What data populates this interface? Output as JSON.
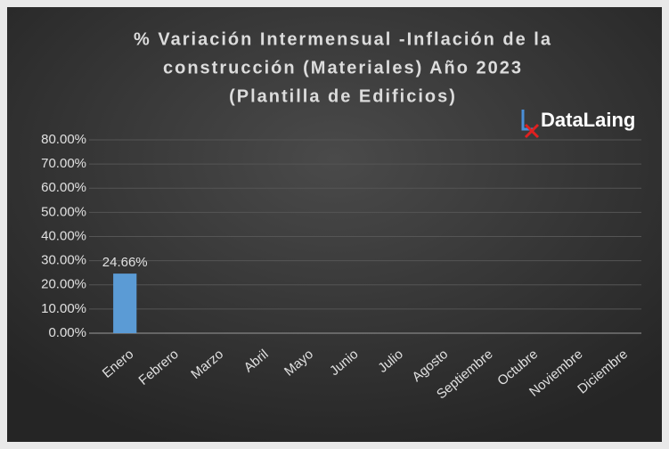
{
  "chart_data": {
    "type": "bar",
    "title": [
      "% Variación Intermensual -Inflación de la",
      "construcción (Materiales) Año 2023",
      "(Plantilla de Edificios)"
    ],
    "logo": "DataLaing",
    "categories": [
      "Enero",
      "Febrero",
      "Marzo",
      "Abril",
      "Mayo",
      "Junio",
      "Julio",
      "Agosto",
      "Septiembre",
      "Octubre",
      "Noviembre",
      "Diciembre"
    ],
    "values": [
      24.66,
      null,
      null,
      null,
      null,
      null,
      null,
      null,
      null,
      null,
      null,
      null
    ],
    "value_labels": [
      "24.66%",
      null,
      null,
      null,
      null,
      null,
      null,
      null,
      null,
      null,
      null,
      null
    ],
    "color": "#5b9bd5",
    "ylim": [
      0,
      80
    ],
    "yticks": [
      {
        "value": 0,
        "label": "0.00%"
      },
      {
        "value": 10,
        "label": "10.00%"
      },
      {
        "value": 20,
        "label": "20.00%"
      },
      {
        "value": 30,
        "label": "30.00%"
      },
      {
        "value": 40,
        "label": "40.00%"
      },
      {
        "value": 50,
        "label": "50.00%"
      },
      {
        "value": 60,
        "label": "60.00%"
      },
      {
        "value": 70,
        "label": "70.00%"
      },
      {
        "value": 80,
        "label": "80.00%"
      }
    ],
    "grid": true
  }
}
